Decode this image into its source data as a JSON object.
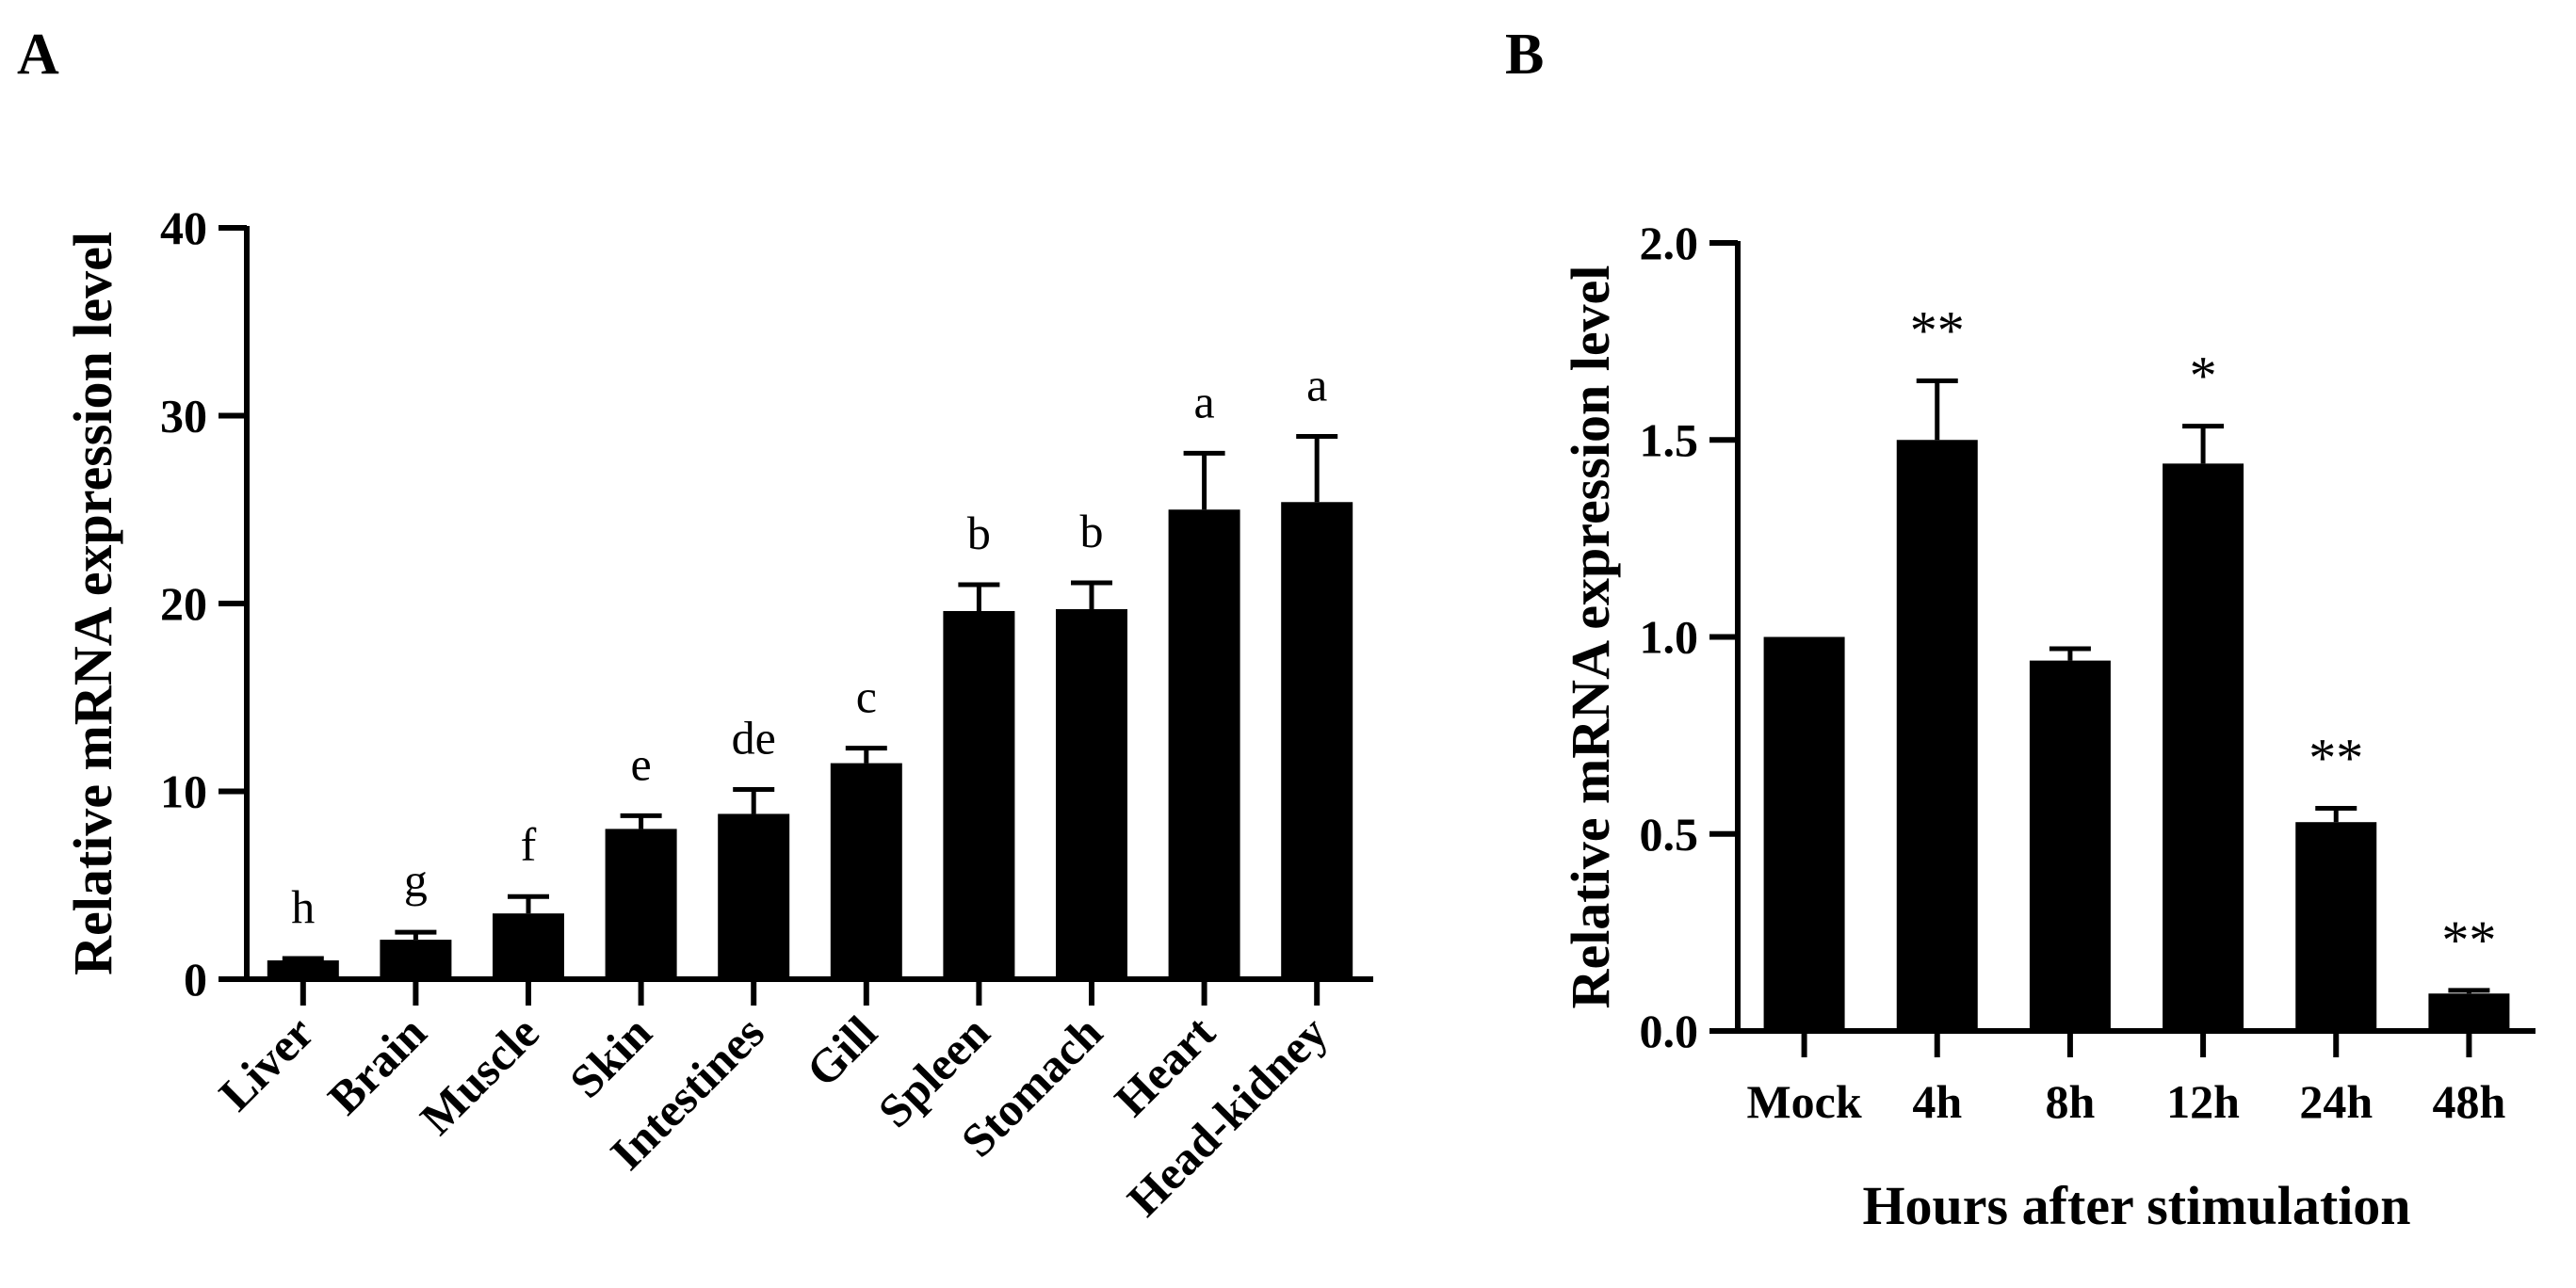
{
  "panels": {
    "a": "A",
    "b": "B"
  },
  "chart_data": [
    {
      "type": "bar",
      "panel": "A",
      "title": "",
      "xlabel": "",
      "ylabel": "Relative mRNA expression level",
      "ylim": [
        0,
        40
      ],
      "yticks": [
        0,
        10,
        20,
        30,
        40
      ],
      "ytick_labels": [
        "0",
        "10",
        "20",
        "30",
        "40"
      ],
      "categories": [
        "Liver",
        "Brain",
        "Muscle",
        "Skin",
        "Intestines",
        "Gill",
        "Spleen",
        "Stomach",
        "Heart",
        "Head-kidney"
      ],
      "values": [
        1.0,
        2.1,
        3.5,
        8.0,
        8.8,
        11.5,
        19.6,
        19.7,
        25.0,
        25.4
      ],
      "errors": [
        0.1,
        0.4,
        0.9,
        0.7,
        1.3,
        0.8,
        1.4,
        1.4,
        3.0,
        3.5
      ],
      "annotations": [
        "h",
        "g",
        "f",
        "e",
        "de",
        "c",
        "b",
        "b",
        "a",
        "a"
      ],
      "bar_color": "#000000"
    },
    {
      "type": "bar",
      "panel": "B",
      "title": "",
      "xlabel": "Hours after stimulation",
      "ylabel": "Relative mRNA expression level",
      "ylim": [
        0,
        2.0
      ],
      "yticks": [
        0,
        0.5,
        1.0,
        1.5,
        2.0
      ],
      "ytick_labels": [
        "0.0",
        "0.5",
        "1.0",
        "1.5",
        "2.0"
      ],
      "categories": [
        "Mock",
        "4h",
        "8h",
        "12h",
        "24h",
        "48h"
      ],
      "values": [
        1.0,
        1.5,
        0.94,
        1.44,
        0.53,
        0.095
      ],
      "errors": [
        0.0,
        0.15,
        0.03,
        0.095,
        0.035,
        0.008
      ],
      "annotations": [
        "",
        "**",
        "",
        "*",
        "**",
        "**"
      ],
      "bar_color": "#000000"
    }
  ]
}
